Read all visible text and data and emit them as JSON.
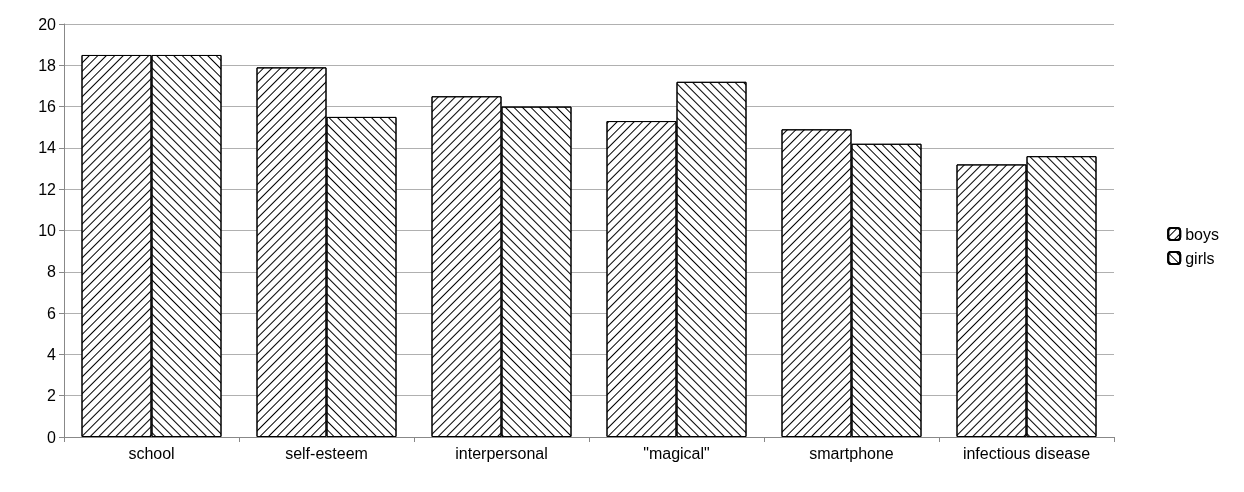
{
  "chart_data": {
    "type": "bar",
    "categories": [
      "school",
      "self-esteem",
      "interpersonal",
      "\"magical\"",
      "smartphone",
      "infectious disease"
    ],
    "series": [
      {
        "name": "boys",
        "color": "#000000",
        "values": [
          18.5,
          17.9,
          16.5,
          15.3,
          14.9,
          13.2
        ]
      },
      {
        "name": "girls",
        "color": "#000000",
        "values": [
          18.5,
          15.5,
          16.0,
          17.2,
          14.2,
          13.6
        ]
      }
    ],
    "ylim": [
      0,
      20
    ],
    "yticks": [
      0,
      2,
      4,
      6,
      8,
      10,
      12,
      14,
      16,
      18,
      20
    ],
    "grid": "y",
    "legend": "right"
  }
}
